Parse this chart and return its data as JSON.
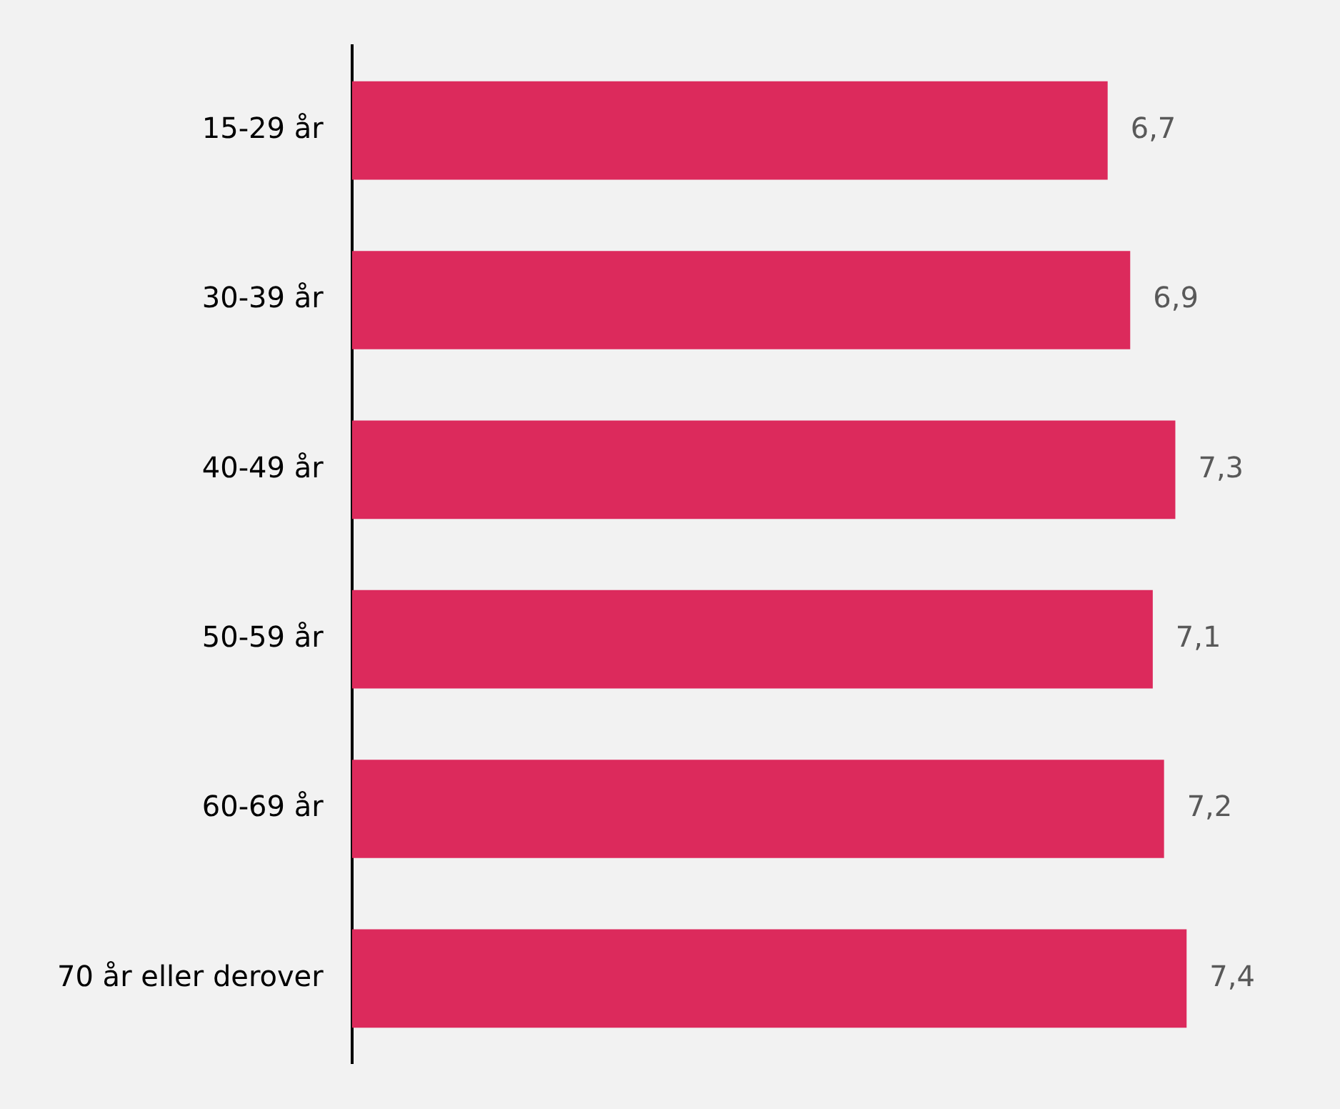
{
  "chart_data": {
    "type": "bar",
    "orientation": "horizontal",
    "categories": [
      "15-29 år",
      "30-39 år",
      "40-49 år",
      "50-59 år",
      "60-69 år",
      "70 år eller derover"
    ],
    "values": [
      6.7,
      6.9,
      7.3,
      7.1,
      7.2,
      7.4
    ],
    "value_labels": [
      "6,7",
      "6,9",
      "7,3",
      "7,1",
      "7,2",
      "7,4"
    ],
    "color": "#dc2a5c",
    "tick_labels": "y",
    "grid": false,
    "legend": false
  }
}
